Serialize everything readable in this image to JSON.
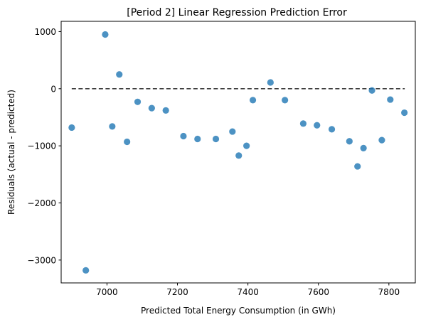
{
  "chart_data": {
    "type": "scatter",
    "title": "[Period 2] Linear Regression Prediction Error",
    "xlabel": "Predicted Total Energy Consumption (in GWh)",
    "ylabel": "Residuals (actual - predicted)",
    "xlim": [
      6870,
      7875
    ],
    "ylim": [
      -3400,
      1180
    ],
    "xticks": [
      7000,
      7200,
      7400,
      7600,
      7800
    ],
    "yticks": [
      1000,
      0,
      -1000,
      -2000,
      -3000
    ],
    "xtick_labels": [
      "7000",
      "7200",
      "7400",
      "7600",
      "7800"
    ],
    "ytick_labels": [
      "1000",
      "0",
      "−1000",
      "−2000",
      "−3000"
    ],
    "grid": false,
    "legend": "none",
    "reference_line": {
      "y": 0,
      "x_from": 6900,
      "x_to": 7845,
      "style": "dashed"
    },
    "point_color": "#1f77b4",
    "line_color": "#404040",
    "points": [
      {
        "x": 6900,
        "y": -680
      },
      {
        "x": 6940,
        "y": -3180
      },
      {
        "x": 6995,
        "y": 950
      },
      {
        "x": 7015,
        "y": -660
      },
      {
        "x": 7035,
        "y": 250
      },
      {
        "x": 7057,
        "y": -930
      },
      {
        "x": 7087,
        "y": -230
      },
      {
        "x": 7127,
        "y": -340
      },
      {
        "x": 7167,
        "y": -380
      },
      {
        "x": 7217,
        "y": -830
      },
      {
        "x": 7257,
        "y": -880
      },
      {
        "x": 7309,
        "y": -880
      },
      {
        "x": 7356,
        "y": -750
      },
      {
        "x": 7374,
        "y": -1170
      },
      {
        "x": 7396,
        "y": -1000
      },
      {
        "x": 7414,
        "y": -200
      },
      {
        "x": 7464,
        "y": 110
      },
      {
        "x": 7505,
        "y": -200
      },
      {
        "x": 7557,
        "y": -610
      },
      {
        "x": 7596,
        "y": -640
      },
      {
        "x": 7638,
        "y": -710
      },
      {
        "x": 7688,
        "y": -920
      },
      {
        "x": 7711,
        "y": -1360
      },
      {
        "x": 7728,
        "y": -1040
      },
      {
        "x": 7752,
        "y": -30
      },
      {
        "x": 7780,
        "y": -900
      },
      {
        "x": 7804,
        "y": -190
      },
      {
        "x": 7844,
        "y": -420
      }
    ]
  }
}
